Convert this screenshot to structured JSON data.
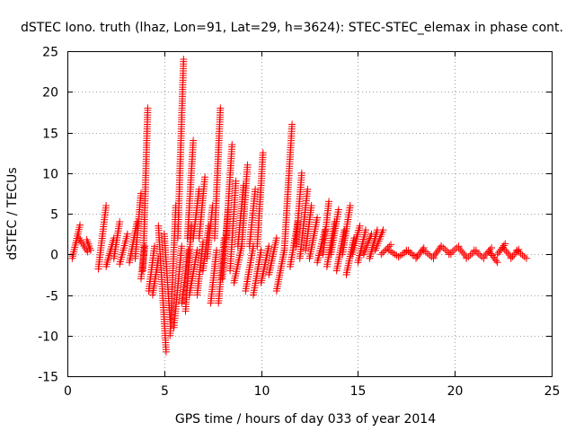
{
  "chart_data": {
    "type": "scatter",
    "title": "dSTEC Iono. truth (lhaz, Lon=91, Lat=29, h=3624): STEC-STEC_elemax in phase cont.",
    "xlabel": "GPS time / hours of day 033 of year 2014",
    "ylabel": "dSTEC  / TECUs",
    "xlim": [
      0,
      25
    ],
    "ylim": [
      -15,
      25
    ],
    "x_ticks": [
      0,
      5,
      10,
      15,
      20,
      25
    ],
    "y_ticks": [
      -15,
      -10,
      -5,
      0,
      5,
      10,
      15,
      20,
      25
    ],
    "grid": true,
    "marker": "plus",
    "colors": {
      "series": "#ff0000",
      "grid": "#a0a0a0",
      "axes": "#000000"
    },
    "series": [
      {
        "name": "",
        "arcs": [
          {
            "x0": 0.25,
            "x1": 0.65,
            "y0": -0.5,
            "y1": 3.6
          },
          {
            "x0": 0.6,
            "x1": 1.05,
            "y0": 2.0,
            "y1": 0.3
          },
          {
            "x0": 1.0,
            "x1": 1.2,
            "y0": 1.8,
            "y1": 0.5
          },
          {
            "x0": 1.6,
            "x1": 2.0,
            "y0": -1.8,
            "y1": 6.0
          },
          {
            "x0": 2.0,
            "x1": 2.4,
            "y0": -1.5,
            "y1": 2.0
          },
          {
            "x0": 2.4,
            "x1": 2.7,
            "y0": -0.5,
            "y1": 4.0
          },
          {
            "x0": 2.7,
            "x1": 3.1,
            "y0": -1.2,
            "y1": 2.5
          },
          {
            "x0": 3.2,
            "x1": 3.6,
            "y0": -1.0,
            "y1": 4.0
          },
          {
            "x0": 3.5,
            "x1": 3.8,
            "y0": -0.5,
            "y1": 7.5
          },
          {
            "x0": 3.8,
            "x1": 4.0,
            "y0": -3.0,
            "y1": 1.0
          },
          {
            "x0": 3.9,
            "x1": 4.15,
            "y0": -2.0,
            "y1": 18.0
          },
          {
            "x0": 4.2,
            "x1": 4.5,
            "y0": -4.5,
            "y1": 1.0
          },
          {
            "x0": 4.4,
            "x1": 4.7,
            "y0": -5.0,
            "y1": -0.5
          },
          {
            "x0": 4.7,
            "x1": 5.1,
            "y0": 3.5,
            "y1": -12.0
          },
          {
            "x0": 5.0,
            "x1": 5.3,
            "y0": 2.5,
            "y1": -8.0
          },
          {
            "x0": 5.3,
            "x1": 5.6,
            "y0": -10.0,
            "y1": 6.0
          },
          {
            "x0": 5.5,
            "x1": 5.9,
            "y0": -9.0,
            "y1": 1.0
          },
          {
            "x0": 5.7,
            "x1": 6.0,
            "y0": 2.0,
            "y1": 24.0
          },
          {
            "x0": 5.9,
            "x1": 6.25,
            "y0": -6.0,
            "y1": 0.5
          },
          {
            "x0": 6.1,
            "x1": 6.4,
            "y0": -7.0,
            "y1": 3.5
          },
          {
            "x0": 6.2,
            "x1": 6.5,
            "y0": 2.0,
            "y1": 14.0
          },
          {
            "x0": 6.3,
            "x1": 6.7,
            "y0": -5.0,
            "y1": 0.5
          },
          {
            "x0": 6.5,
            "x1": 6.8,
            "y0": 2.0,
            "y1": 8.0
          },
          {
            "x0": 6.7,
            "x1": 7.0,
            "y0": -5.0,
            "y1": 1.5
          },
          {
            "x0": 6.8,
            "x1": 7.1,
            "y0": 2.0,
            "y1": 9.5
          },
          {
            "x0": 7.0,
            "x1": 7.3,
            "y0": -2.0,
            "y1": 3.5
          },
          {
            "x0": 7.2,
            "x1": 7.5,
            "y0": -0.5,
            "y1": 6.0
          },
          {
            "x0": 7.4,
            "x1": 7.7,
            "y0": -6.0,
            "y1": 0.5
          },
          {
            "x0": 7.6,
            "x1": 7.9,
            "y0": 2.0,
            "y1": 18.0
          },
          {
            "x0": 7.8,
            "x1": 8.1,
            "y0": -6.0,
            "y1": 2.0
          },
          {
            "x0": 8.0,
            "x1": 8.3,
            "y0": -3.0,
            "y1": 5.5
          },
          {
            "x0": 8.2,
            "x1": 8.5,
            "y0": 2.0,
            "y1": 13.5
          },
          {
            "x0": 8.4,
            "x1": 8.7,
            "y0": -2.0,
            "y1": 9.0
          },
          {
            "x0": 8.6,
            "x1": 9.0,
            "y0": -3.5,
            "y1": 1.0
          },
          {
            "x0": 8.8,
            "x1": 9.1,
            "y0": 1.0,
            "y1": 8.5
          },
          {
            "x0": 9.0,
            "x1": 9.3,
            "y0": 1.0,
            "y1": 11.0
          },
          {
            "x0": 9.2,
            "x1": 9.6,
            "y0": -4.5,
            "y1": 1.0
          },
          {
            "x0": 9.4,
            "x1": 9.7,
            "y0": 1.0,
            "y1": 8.0
          },
          {
            "x0": 9.6,
            "x1": 10.0,
            "y0": -5.0,
            "y1": 0.5
          },
          {
            "x0": 9.8,
            "x1": 10.1,
            "y0": 1.0,
            "y1": 12.5
          },
          {
            "x0": 10.0,
            "x1": 10.4,
            "y0": -3.5,
            "y1": 1.0
          },
          {
            "x0": 10.4,
            "x1": 10.8,
            "y0": -2.5,
            "y1": 2.0
          },
          {
            "x0": 10.8,
            "x1": 11.2,
            "y0": -4.5,
            "y1": 0.5
          },
          {
            "x0": 11.2,
            "x1": 11.6,
            "y0": 0.5,
            "y1": 16.0
          },
          {
            "x0": 11.5,
            "x1": 11.9,
            "y0": -1.5,
            "y1": 4.0
          },
          {
            "x0": 11.8,
            "x1": 12.1,
            "y0": 1.0,
            "y1": 10.0
          },
          {
            "x0": 12.0,
            "x1": 12.4,
            "y0": -0.5,
            "y1": 8.0
          },
          {
            "x0": 12.3,
            "x1": 12.6,
            "y0": 0.5,
            "y1": 6.0
          },
          {
            "x0": 12.5,
            "x1": 12.9,
            "y0": -0.5,
            "y1": 4.5
          },
          {
            "x0": 12.9,
            "x1": 13.3,
            "y0": -1.0,
            "y1": 3.0
          },
          {
            "x0": 13.2,
            "x1": 13.5,
            "y0": 0.0,
            "y1": 6.5
          },
          {
            "x0": 13.4,
            "x1": 13.8,
            "y0": -1.5,
            "y1": 4.0
          },
          {
            "x0": 13.6,
            "x1": 14.0,
            "y0": 0.0,
            "y1": 5.5
          },
          {
            "x0": 13.9,
            "x1": 14.3,
            "y0": -2.0,
            "y1": 3.0
          },
          {
            "x0": 14.2,
            "x1": 14.6,
            "y0": 0.0,
            "y1": 6.0
          },
          {
            "x0": 14.4,
            "x1": 14.8,
            "y0": -2.5,
            "y1": 2.0
          },
          {
            "x0": 14.7,
            "x1": 15.1,
            "y0": 0.0,
            "y1": 3.5
          },
          {
            "x0": 15.0,
            "x1": 15.4,
            "y0": -1.0,
            "y1": 3.0
          },
          {
            "x0": 15.3,
            "x1": 15.7,
            "y0": 0.0,
            "y1": 2.5
          },
          {
            "x0": 15.6,
            "x1": 16.0,
            "y0": -0.5,
            "y1": 3.0
          },
          {
            "x0": 15.9,
            "x1": 16.3,
            "y0": 0.5,
            "y1": 3.0
          },
          {
            "x0": 16.2,
            "x1": 16.7,
            "y0": 0.0,
            "y1": 1.2
          },
          {
            "x0": 16.6,
            "x1": 17.1,
            "y0": 0.5,
            "y1": -0.3
          },
          {
            "x0": 17.1,
            "x1": 17.6,
            "y0": -0.3,
            "y1": 0.5
          },
          {
            "x0": 17.5,
            "x1": 18.0,
            "y0": 0.5,
            "y1": -0.3
          },
          {
            "x0": 18.0,
            "x1": 18.4,
            "y0": -0.5,
            "y1": 0.8
          },
          {
            "x0": 18.4,
            "x1": 18.9,
            "y0": 0.5,
            "y1": -0.5
          },
          {
            "x0": 18.9,
            "x1": 19.3,
            "y0": -0.3,
            "y1": 1.0
          },
          {
            "x0": 19.3,
            "x1": 19.8,
            "y0": 1.0,
            "y1": 0.0
          },
          {
            "x0": 19.7,
            "x1": 20.2,
            "y0": 0.0,
            "y1": 1.0
          },
          {
            "x0": 20.2,
            "x1": 20.6,
            "y0": 0.8,
            "y1": -0.3
          },
          {
            "x0": 20.6,
            "x1": 21.1,
            "y0": -0.5,
            "y1": 0.5
          },
          {
            "x0": 21.0,
            "x1": 21.5,
            "y0": 0.5,
            "y1": -0.5
          },
          {
            "x0": 21.5,
            "x1": 21.9,
            "y0": -0.3,
            "y1": 0.8
          },
          {
            "x0": 21.8,
            "x1": 22.2,
            "y0": 0.3,
            "y1": -1.0
          },
          {
            "x0": 22.2,
            "x1": 22.6,
            "y0": 0.0,
            "y1": 1.3
          },
          {
            "x0": 22.5,
            "x1": 22.9,
            "y0": 0.8,
            "y1": -0.3
          },
          {
            "x0": 22.9,
            "x1": 23.3,
            "y0": -0.5,
            "y1": 0.6
          },
          {
            "x0": 23.2,
            "x1": 23.7,
            "y0": 0.5,
            "y1": -0.5
          }
        ]
      }
    ]
  }
}
